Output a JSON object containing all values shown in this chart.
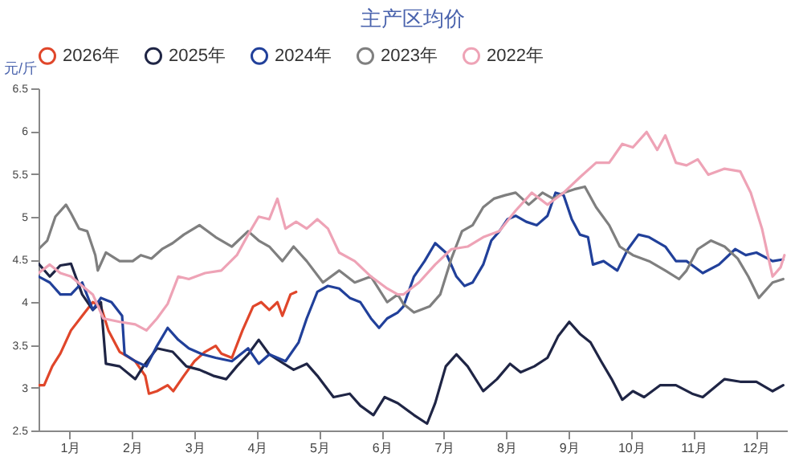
{
  "chart_data": {
    "type": "line",
    "title": "主产区均价",
    "ylabel": "元/斤",
    "xlim": [
      0,
      12
    ],
    "xticks": [
      {
        "value": 0.5,
        "label": "1月"
      },
      {
        "value": 1.5,
        "label": "2月"
      },
      {
        "value": 2.5,
        "label": "3月"
      },
      {
        "value": 3.5,
        "label": "4月"
      },
      {
        "value": 4.5,
        "label": "5月"
      },
      {
        "value": 5.5,
        "label": "6月"
      },
      {
        "value": 6.5,
        "label": "7月"
      },
      {
        "value": 7.5,
        "label": "8月"
      },
      {
        "value": 8.5,
        "label": "9月"
      },
      {
        "value": 9.5,
        "label": "10月"
      },
      {
        "value": 10.5,
        "label": "11月"
      },
      {
        "value": 11.5,
        "label": "12月"
      }
    ],
    "ylim": [
      2.5,
      6.5
    ],
    "yticks": [
      2.5,
      3,
      3.5,
      4,
      4.5,
      5,
      5.5,
      6,
      6.5
    ],
    "grid": false,
    "legend": "top",
    "marker": "none",
    "line_style": "solid",
    "series": [
      {
        "name": "2026年",
        "color": "#e0462a",
        "x": [
          0,
          0.09,
          0.22,
          0.35,
          0.52,
          0.7,
          0.87,
          1.0,
          1.12,
          1.3,
          1.55,
          1.71,
          1.77,
          1.9,
          2.07,
          2.16,
          2.33,
          2.5,
          2.67,
          2.84,
          2.93,
          3.1,
          3.27,
          3.44,
          3.57,
          3.7,
          3.83,
          3.91,
          4.04,
          4.13
        ],
        "values": [
          3.03,
          3.03,
          3.25,
          3.4,
          3.67,
          3.84,
          4.0,
          3.95,
          3.67,
          3.42,
          3.31,
          3.14,
          2.93,
          2.96,
          3.03,
          2.96,
          3.14,
          3.31,
          3.42,
          3.49,
          3.4,
          3.35,
          3.67,
          3.95,
          4.0,
          3.91,
          4.0,
          3.84,
          4.09,
          4.12
        ]
      },
      {
        "name": "2025年",
        "color": "#1f2545",
        "x": [
          0,
          0.18,
          0.35,
          0.52,
          0.7,
          0.87,
          1.0,
          1.08,
          1.3,
          1.55,
          1.68,
          1.9,
          2.15,
          2.37,
          2.58,
          2.8,
          3.01,
          3.18,
          3.36,
          3.53,
          3.7,
          3.87,
          4.09,
          4.3,
          4.47,
          4.73,
          4.99,
          5.16,
          5.37,
          5.55,
          5.76,
          6.02,
          6.23,
          6.36,
          6.53,
          6.7,
          6.88,
          7.13,
          7.35,
          7.56,
          7.73,
          7.95,
          8.16,
          8.33,
          8.51,
          8.68,
          8.85,
          9.02,
          9.19,
          9.36,
          9.53,
          9.71,
          9.97,
          10.22,
          10.48,
          10.65,
          11.0,
          11.25,
          11.51,
          11.77,
          11.94
        ],
        "values": [
          4.45,
          4.3,
          4.43,
          4.45,
          4.09,
          3.91,
          4.0,
          3.28,
          3.25,
          3.1,
          3.25,
          3.46,
          3.42,
          3.25,
          3.21,
          3.14,
          3.1,
          3.25,
          3.39,
          3.56,
          3.39,
          3.31,
          3.21,
          3.28,
          3.14,
          2.89,
          2.93,
          2.79,
          2.68,
          2.89,
          2.82,
          2.68,
          2.58,
          2.82,
          3.25,
          3.39,
          3.25,
          2.96,
          3.1,
          3.28,
          3.18,
          3.25,
          3.35,
          3.6,
          3.77,
          3.63,
          3.53,
          3.31,
          3.1,
          2.86,
          2.96,
          2.89,
          3.03,
          3.03,
          2.93,
          2.89,
          3.1,
          3.07,
          3.07,
          2.96,
          3.03
        ]
      },
      {
        "name": "2024年",
        "color": "#21409a",
        "x": [
          0,
          0.18,
          0.35,
          0.52,
          0.7,
          0.87,
          1.0,
          1.17,
          1.34,
          1.38,
          1.55,
          1.73,
          1.9,
          2.07,
          2.24,
          2.41,
          2.63,
          2.84,
          3.1,
          3.36,
          3.53,
          3.7,
          3.96,
          4.17,
          4.3,
          4.47,
          4.64,
          4.82,
          4.99,
          5.16,
          5.33,
          5.46,
          5.59,
          5.76,
          5.85,
          6.02,
          6.19,
          6.36,
          6.53,
          6.7,
          6.83,
          6.96,
          7.13,
          7.26,
          7.39,
          7.52,
          7.65,
          7.82,
          7.99,
          8.16,
          8.29,
          8.42,
          8.55,
          8.68,
          8.81,
          8.89,
          9.06,
          9.28,
          9.45,
          9.62,
          9.79,
          10.05,
          10.22,
          10.39,
          10.65,
          10.91,
          11.17,
          11.34,
          11.51,
          11.77,
          11.94
        ],
        "values": [
          4.3,
          4.23,
          4.09,
          4.09,
          4.23,
          3.91,
          4.05,
          4.0,
          3.84,
          3.39,
          3.31,
          3.25,
          3.49,
          3.7,
          3.56,
          3.46,
          3.39,
          3.35,
          3.31,
          3.46,
          3.28,
          3.39,
          3.31,
          3.53,
          3.81,
          4.12,
          4.19,
          4.16,
          4.05,
          4.0,
          3.81,
          3.7,
          3.81,
          3.88,
          3.95,
          4.3,
          4.48,
          4.69,
          4.58,
          4.3,
          4.19,
          4.23,
          4.44,
          4.72,
          4.83,
          4.97,
          5.01,
          4.94,
          4.9,
          5.01,
          5.28,
          5.25,
          4.97,
          4.79,
          4.76,
          4.44,
          4.48,
          4.37,
          4.62,
          4.79,
          4.76,
          4.65,
          4.48,
          4.48,
          4.34,
          4.44,
          4.62,
          4.55,
          4.58,
          4.48,
          4.5
        ]
      },
      {
        "name": "2023年",
        "color": "#7f7f7f",
        "x": [
          0,
          0.14,
          0.27,
          0.44,
          0.52,
          0.65,
          0.78,
          0.91,
          0.95,
          1.08,
          1.3,
          1.51,
          1.64,
          1.81,
          1.98,
          2.15,
          2.33,
          2.58,
          2.84,
          3.1,
          3.36,
          3.53,
          3.7,
          3.91,
          4.09,
          4.3,
          4.56,
          4.82,
          5.07,
          5.33,
          5.59,
          5.76,
          5.85,
          6.02,
          6.27,
          6.44,
          6.62,
          6.79,
          6.96,
          7.13,
          7.3,
          7.48,
          7.65,
          7.86,
          8.08,
          8.25,
          8.42,
          8.59,
          8.76,
          8.94,
          9.15,
          9.32,
          9.53,
          9.79,
          10.05,
          10.27,
          10.39,
          10.57,
          10.78,
          11.0,
          11.21,
          11.38,
          11.55,
          11.77,
          11.94
        ],
        "values": [
          4.62,
          4.72,
          5.0,
          5.14,
          5.04,
          4.86,
          4.83,
          4.55,
          4.37,
          4.58,
          4.48,
          4.48,
          4.55,
          4.51,
          4.62,
          4.69,
          4.79,
          4.9,
          4.76,
          4.65,
          4.83,
          4.72,
          4.65,
          4.48,
          4.65,
          4.48,
          4.23,
          4.37,
          4.23,
          4.3,
          4.0,
          4.09,
          3.98,
          3.88,
          3.95,
          4.09,
          4.51,
          4.83,
          4.9,
          5.11,
          5.21,
          5.25,
          5.28,
          5.14,
          5.28,
          5.21,
          5.28,
          5.32,
          5.35,
          5.11,
          4.9,
          4.65,
          4.55,
          4.48,
          4.37,
          4.27,
          4.37,
          4.62,
          4.72,
          4.65,
          4.51,
          4.3,
          4.05,
          4.23,
          4.27
        ]
      },
      {
        "name": "2022年",
        "color": "#eea3b6",
        "x": [
          0,
          0.18,
          0.35,
          0.52,
          0.7,
          0.87,
          1.04,
          1.3,
          1.55,
          1.73,
          1.9,
          2.07,
          2.24,
          2.41,
          2.67,
          2.93,
          3.18,
          3.36,
          3.53,
          3.7,
          3.83,
          3.96,
          4.13,
          4.3,
          4.47,
          4.64,
          4.82,
          5.07,
          5.33,
          5.59,
          5.76,
          5.85,
          6.1,
          6.36,
          6.62,
          6.88,
          7.13,
          7.39,
          7.65,
          7.91,
          8.16,
          8.42,
          8.68,
          8.94,
          9.15,
          9.36,
          9.53,
          9.75,
          9.92,
          10.05,
          10.22,
          10.39,
          10.57,
          10.74,
          11.0,
          11.25,
          11.42,
          11.6,
          11.77,
          11.9,
          11.96
        ],
        "values": [
          4.34,
          4.44,
          4.34,
          4.3,
          4.19,
          4.09,
          3.81,
          3.77,
          3.74,
          3.67,
          3.81,
          3.98,
          4.3,
          4.27,
          4.34,
          4.37,
          4.55,
          4.79,
          5.0,
          4.97,
          5.21,
          4.86,
          4.94,
          4.86,
          4.97,
          4.86,
          4.58,
          4.48,
          4.3,
          4.16,
          4.09,
          4.09,
          4.23,
          4.44,
          4.62,
          4.65,
          4.76,
          4.83,
          5.07,
          5.28,
          5.14,
          5.28,
          5.46,
          5.63,
          5.63,
          5.85,
          5.81,
          5.99,
          5.78,
          5.95,
          5.63,
          5.6,
          5.67,
          5.49,
          5.56,
          5.53,
          5.28,
          4.86,
          4.3,
          4.41,
          4.55
        ]
      }
    ]
  }
}
